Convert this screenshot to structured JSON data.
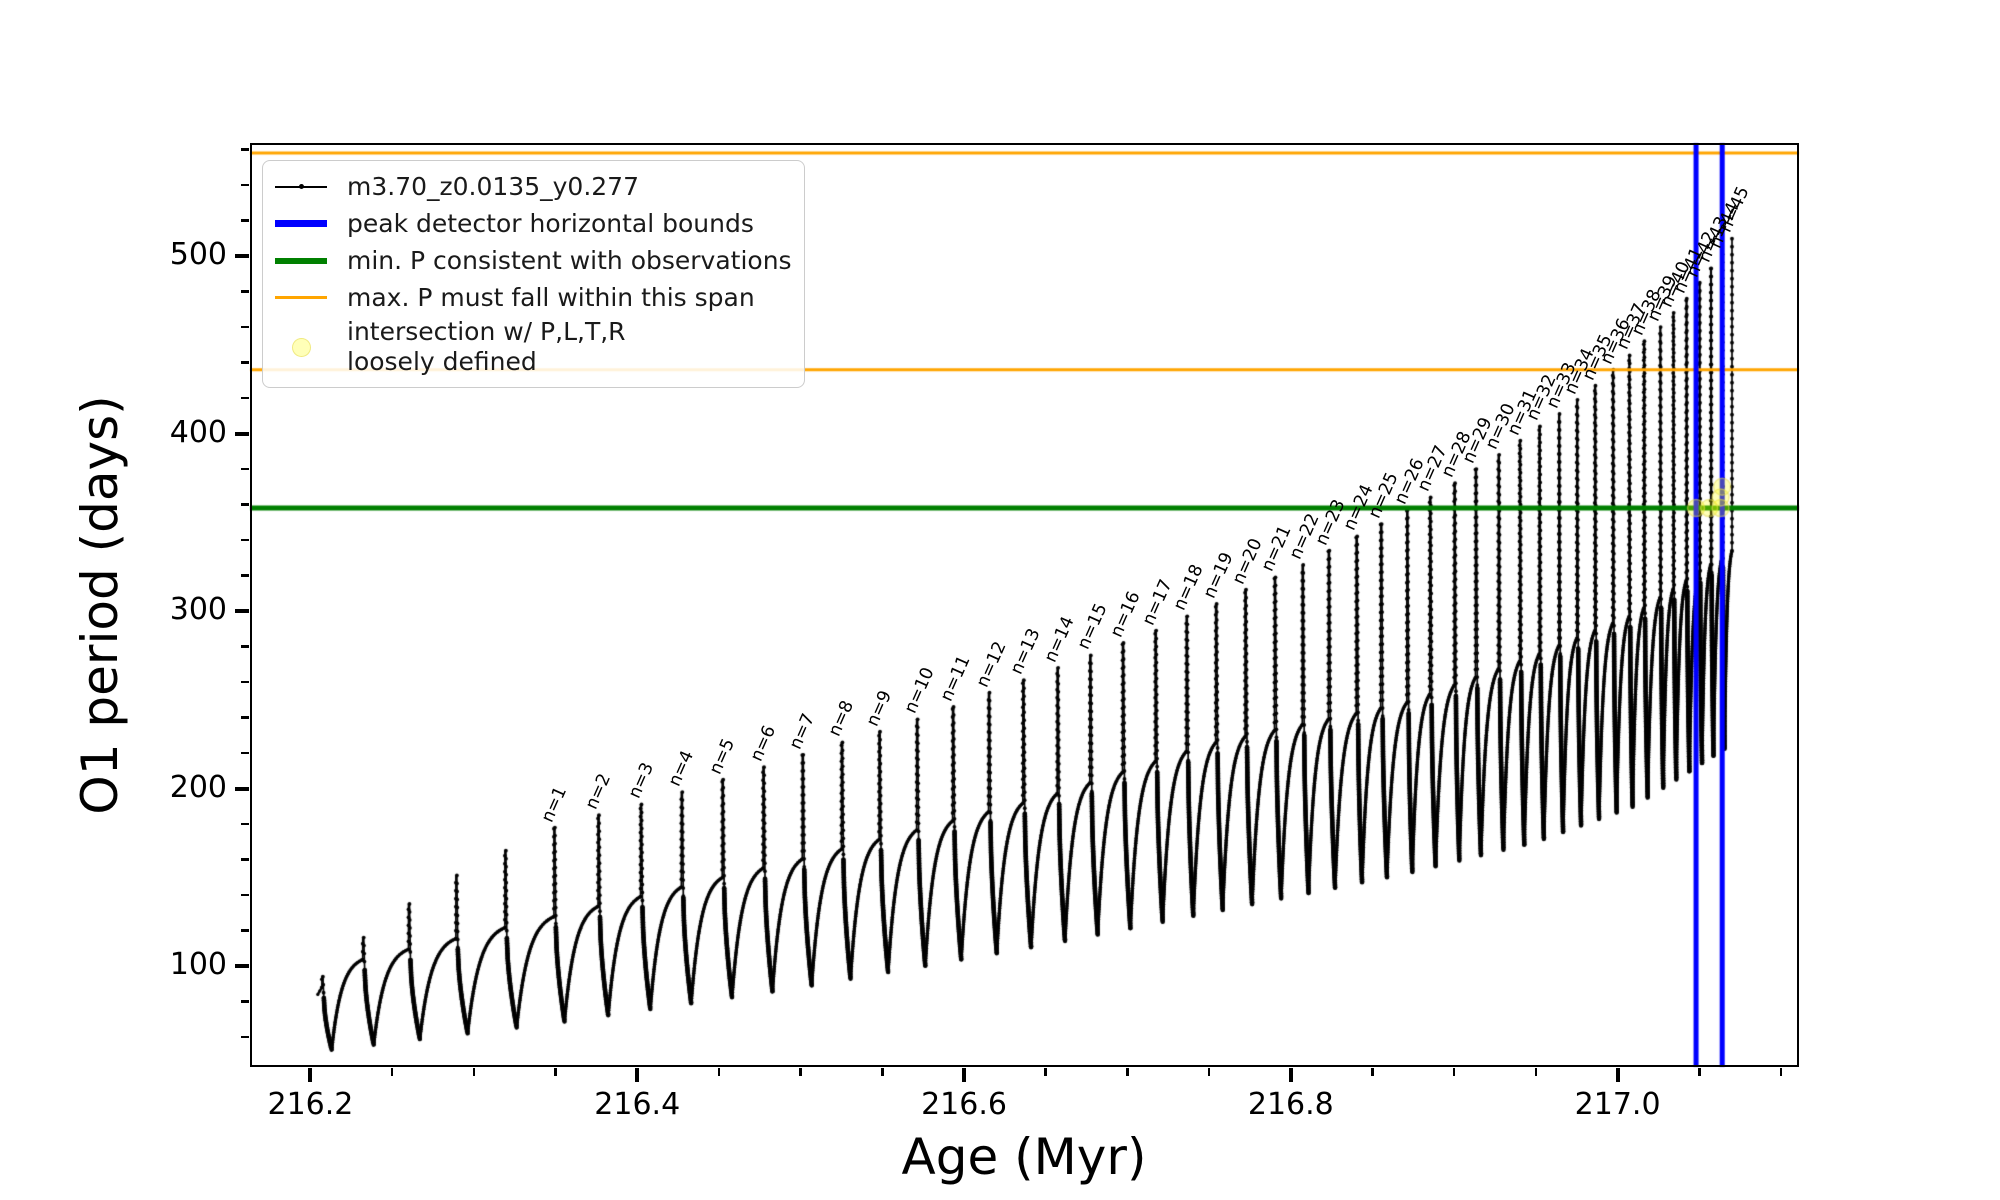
{
  "colors": {
    "series": "#000000",
    "peak_bounds": "#0000ff",
    "min_p": "#008000",
    "max_p": "#ffa500",
    "intersection_fill": "rgba(255,255,0,0.28)",
    "intersection_edge": "rgba(230,220,90,0.55)",
    "background": "#ffffff"
  },
  "legend": {
    "items": [
      {
        "label": "m3.70_z0.0135_y0.277",
        "type": "line-with-marker",
        "color": "#000000"
      },
      {
        "label": "peak detector horizontal bounds",
        "type": "line",
        "color": "#0000ff"
      },
      {
        "label": "min. P consistent with observations",
        "type": "line",
        "color": "#008000"
      },
      {
        "label": "max. P must fall within this span",
        "type": "line",
        "color": "#ffa500"
      },
      {
        "label": "intersection w/ P,L,T,R\nloosely defined",
        "type": "marker",
        "color": "#ffff00"
      }
    ]
  },
  "chart_data": {
    "type": "line",
    "title": "",
    "xlabel": "Age (Myr)",
    "ylabel": "O1 period (days)",
    "xlim": [
      216.163,
      217.111
    ],
    "ylim": [
      43.1,
      563.7
    ],
    "grid": false,
    "legend_position": "upper left",
    "series_label": "m3.70_z0.0135_y0.277",
    "x_major_ticks": [
      216.2,
      216.4,
      216.6,
      216.8,
      217.0
    ],
    "x_major_labels": [
      "216.2",
      "216.4",
      "216.6",
      "216.8",
      "217.0"
    ],
    "x_minor_ticks": [
      216.25,
      216.3,
      216.35,
      216.45,
      216.5,
      216.55,
      216.65,
      216.7,
      216.75,
      216.85,
      216.9,
      216.95,
      217.05,
      217.1
    ],
    "y_major_ticks": [
      100,
      200,
      300,
      400,
      500
    ],
    "y_major_labels": [
      "100",
      "200",
      "300",
      "400",
      "500"
    ],
    "y_minor_ticks": [
      60,
      80,
      120,
      140,
      160,
      180,
      220,
      240,
      260,
      280,
      320,
      340,
      360,
      380,
      420,
      440,
      460,
      480,
      520,
      540,
      560
    ],
    "hlines": [
      {
        "y": 558,
        "color": "#ffa500",
        "lw": 3,
        "label": "max. P must fall within this span"
      },
      {
        "y": 436,
        "color": "#ffa500",
        "lw": 3,
        "label": "max. P must fall within this span"
      },
      {
        "y": 358,
        "color": "#008000",
        "lw": 5,
        "label": "min. P consistent with observations"
      }
    ],
    "vlines": [
      {
        "x": 217.048,
        "color": "#0000ff",
        "lw": 5,
        "label": "peak detector horizontal bounds"
      },
      {
        "x": 217.064,
        "color": "#0000ff",
        "lw": 5,
        "label": "peak detector horizontal bounds"
      }
    ],
    "intersection_points": [
      [
        217.048,
        358
      ],
      [
        217.056,
        358
      ],
      [
        217.063,
        358
      ],
      [
        217.063,
        364
      ],
      [
        217.064,
        370
      ]
    ],
    "curve": {
      "start_age": 216.2045,
      "end_age": 217.07,
      "plateau_envelope": [
        [
          216.205,
          98
        ],
        [
          216.35,
          128
        ],
        [
          216.5,
          160
        ],
        [
          216.65,
          195
        ],
        [
          216.75,
          225
        ],
        [
          216.87,
          248
        ],
        [
          216.95,
          275
        ],
        [
          217.01,
          298
        ],
        [
          217.07,
          334
        ]
      ],
      "trough_envelope": [
        [
          216.205,
          52
        ],
        [
          216.35,
          68
        ],
        [
          216.5,
          88
        ],
        [
          216.65,
          112
        ],
        [
          216.75,
          130
        ],
        [
          216.87,
          152
        ],
        [
          216.95,
          170
        ],
        [
          217.01,
          190
        ],
        [
          217.07,
          225
        ]
      ]
    },
    "pre_peaks": [
      {
        "age": 216.207,
        "top": 94
      },
      {
        "age": 216.232,
        "top": 116
      },
      {
        "age": 216.26,
        "top": 135
      },
      {
        "age": 216.289,
        "top": 151
      },
      {
        "age": 216.319,
        "top": 165
      }
    ],
    "peaks": [
      {
        "n": 1,
        "age": 216.349,
        "top": 178
      },
      {
        "n": 2,
        "age": 216.376,
        "top": 185
      },
      {
        "n": 3,
        "age": 216.402,
        "top": 191
      },
      {
        "n": 4,
        "age": 216.427,
        "top": 198
      },
      {
        "n": 5,
        "age": 216.452,
        "top": 205
      },
      {
        "n": 6,
        "age": 216.477,
        "top": 212
      },
      {
        "n": 7,
        "age": 216.501,
        "top": 219
      },
      {
        "n": 8,
        "age": 216.525,
        "top": 226
      },
      {
        "n": 9,
        "age": 216.548,
        "top": 232
      },
      {
        "n": 10,
        "age": 216.571,
        "top": 239
      },
      {
        "n": 11,
        "age": 216.593,
        "top": 246
      },
      {
        "n": 12,
        "age": 216.615,
        "top": 254
      },
      {
        "n": 13,
        "age": 216.636,
        "top": 261
      },
      {
        "n": 14,
        "age": 216.657,
        "top": 268
      },
      {
        "n": 15,
        "age": 216.677,
        "top": 275
      },
      {
        "n": 16,
        "age": 216.697,
        "top": 282
      },
      {
        "n": 17,
        "age": 216.717,
        "top": 289
      },
      {
        "n": 18,
        "age": 216.736,
        "top": 297
      },
      {
        "n": 19,
        "age": 216.754,
        "top": 304
      },
      {
        "n": 20,
        "age": 216.772,
        "top": 312
      },
      {
        "n": 21,
        "age": 216.79,
        "top": 319
      },
      {
        "n": 22,
        "age": 216.807,
        "top": 326
      },
      {
        "n": 23,
        "age": 216.823,
        "top": 334
      },
      {
        "n": 24,
        "age": 216.84,
        "top": 342
      },
      {
        "n": 25,
        "age": 216.855,
        "top": 349
      },
      {
        "n": 26,
        "age": 216.871,
        "top": 357
      },
      {
        "n": 27,
        "age": 216.885,
        "top": 364
      },
      {
        "n": 28,
        "age": 216.9,
        "top": 372
      },
      {
        "n": 29,
        "age": 216.913,
        "top": 380
      },
      {
        "n": 30,
        "age": 216.927,
        "top": 388
      },
      {
        "n": 31,
        "age": 216.94,
        "top": 396
      },
      {
        "n": 32,
        "age": 216.952,
        "top": 404
      },
      {
        "n": 33,
        "age": 216.964,
        "top": 411
      },
      {
        "n": 34,
        "age": 216.975,
        "top": 419
      },
      {
        "n": 35,
        "age": 216.986,
        "top": 427
      },
      {
        "n": 36,
        "age": 216.997,
        "top": 436
      },
      {
        "n": 37,
        "age": 217.007,
        "top": 444
      },
      {
        "n": 38,
        "age": 217.016,
        "top": 452
      },
      {
        "n": 39,
        "age": 217.026,
        "top": 460
      },
      {
        "n": 40,
        "age": 217.034,
        "top": 468
      },
      {
        "n": 41,
        "age": 217.042,
        "top": 476
      },
      {
        "n": 42,
        "age": 217.05,
        "top": 485
      },
      {
        "n": 43,
        "age": 217.057,
        "top": 493
      },
      {
        "n": 44,
        "age": 217.064,
        "top": 501
      },
      {
        "n": 45,
        "age": 217.07,
        "top": 510
      }
    ]
  }
}
